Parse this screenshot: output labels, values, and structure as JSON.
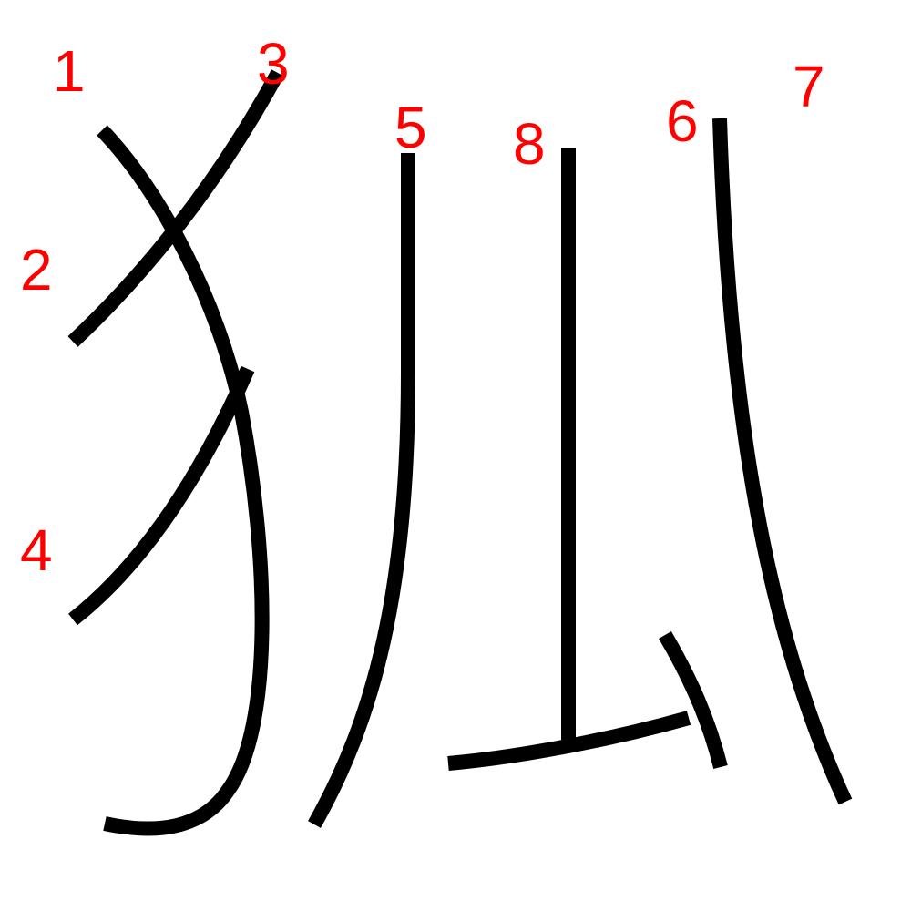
{
  "colors": {
    "stroke": "#000000",
    "label": "#ff0000",
    "background": "#ffffff"
  },
  "strokes": [
    {
      "label": "1"
    },
    {
      "label": "2"
    },
    {
      "label": "3"
    },
    {
      "label": "4"
    },
    {
      "label": "5"
    },
    {
      "label": "6"
    },
    {
      "label": "7"
    },
    {
      "label": "8"
    }
  ]
}
